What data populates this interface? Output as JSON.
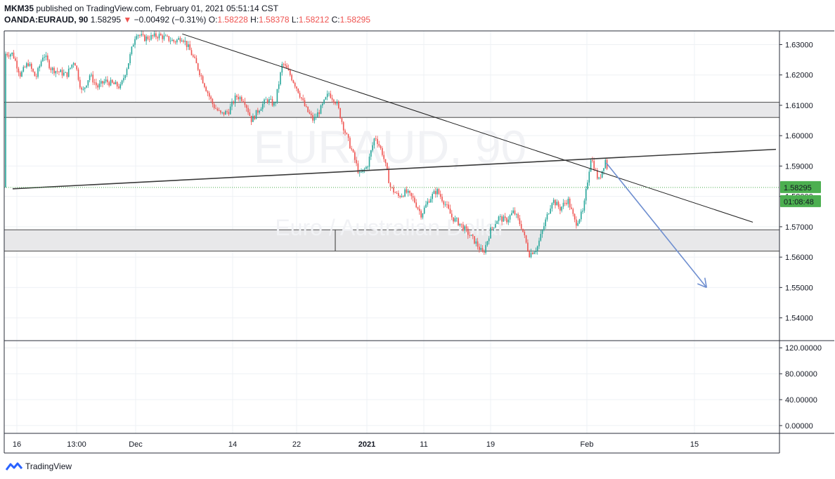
{
  "header": {
    "author": "MKM35",
    "published_text": "published on TradingView.com, February 01, 2021 05:51:14 CST",
    "symbol": "OANDA:EURAUD, 90",
    "last": "1.58295",
    "arrow": "▼",
    "change": "−0.00492 (−0.31%)",
    "o_label": "O:",
    "o": "1.58228",
    "h_label": "H:",
    "h": "1.58378",
    "l_label": "L:",
    "l": "1.58212",
    "c_label": "C:",
    "c": "1.58295"
  },
  "watermark": {
    "symbol": "EURAUD, 90",
    "description": "Euro / Australian Dollar"
  },
  "price_axis": {
    "ticks": [
      "1.63000",
      "1.62000",
      "1.61000",
      "1.60000",
      "1.59000",
      "1.58000",
      "1.57000",
      "1.56000",
      "1.55000",
      "1.54000"
    ],
    "tick_values": [
      1.63,
      1.62,
      1.61,
      1.6,
      1.59,
      1.58,
      1.57,
      1.56,
      1.55,
      1.54
    ],
    "last_price_label": "1.58295",
    "countdown_label": "01:08:48"
  },
  "osc_axis": {
    "ticks": [
      "120.00000",
      "80.00000",
      "40.00000",
      "0.00000"
    ],
    "tick_values": [
      120,
      80,
      40,
      0
    ]
  },
  "time_axis": {
    "labels": [
      "16",
      "13:00",
      "Dec",
      "14",
      "22",
      "2021",
      "11",
      "19",
      "Feb",
      "15"
    ],
    "bold": [
      false,
      false,
      false,
      false,
      false,
      true,
      false,
      false,
      false,
      false
    ]
  },
  "footer": {
    "brand": "TradingView"
  },
  "colors": {
    "up": "#26a69a",
    "down": "#ef5350",
    "blue_arrow": "#6f8fd0",
    "last_price_bg": "#4caf50",
    "zone_fill": "#e8e8ea",
    "grid": "#eef0f4"
  },
  "chart_data": {
    "type": "candlestick",
    "symbol": "OANDA:EURAUD",
    "interval": "90",
    "x_range": [
      "2020-11-16",
      "2021-02-23"
    ],
    "ylim": [
      1.5325,
      1.6345
    ],
    "path": [
      [
        "2020-11-16",
        1.627
      ],
      [
        "2020-11-17",
        1.62
      ],
      [
        "2020-11-18",
        1.624
      ],
      [
        "2020-11-19",
        1.619
      ],
      [
        "2020-11-20",
        1.627
      ],
      [
        "2020-11-21",
        1.622
      ],
      [
        "2020-11-23",
        1.62
      ],
      [
        "2020-11-24",
        1.625
      ],
      [
        "2020-11-25",
        1.614
      ],
      [
        "2020-11-26",
        1.62
      ],
      [
        "2020-11-27",
        1.616
      ],
      [
        "2020-11-28",
        1.618
      ],
      [
        "2020-11-30",
        1.616
      ],
      [
        "2020-12-01",
        1.624
      ],
      [
        "2020-12-02",
        1.634
      ],
      [
        "2020-12-03",
        1.632
      ],
      [
        "2020-12-05",
        1.633
      ],
      [
        "2020-12-07",
        1.631
      ],
      [
        "2020-12-08",
        1.6325
      ],
      [
        "2020-12-09",
        1.628
      ],
      [
        "2020-12-10",
        1.6225
      ],
      [
        "2020-12-11",
        1.616
      ],
      [
        "2020-12-12",
        1.61
      ],
      [
        "2020-12-13",
        1.607
      ],
      [
        "2020-12-14",
        1.608
      ],
      [
        "2020-12-15",
        1.613
      ],
      [
        "2020-12-16",
        1.612
      ],
      [
        "2020-12-17",
        1.605
      ],
      [
        "2020-12-18",
        1.609
      ],
      [
        "2020-12-19",
        1.612
      ],
      [
        "2020-12-20",
        1.61
      ],
      [
        "2020-12-21",
        1.624
      ],
      [
        "2020-12-22",
        1.62
      ],
      [
        "2020-12-23",
        1.615
      ],
      [
        "2020-12-24",
        1.609
      ],
      [
        "2020-12-25",
        1.605
      ],
      [
        "2020-12-26",
        1.609
      ],
      [
        "2020-12-27",
        1.614
      ],
      [
        "2020-12-28",
        1.611
      ],
      [
        "2020-12-29",
        1.602
      ],
      [
        "2020-12-30",
        1.595
      ],
      [
        "2020-12-31",
        1.587
      ],
      [
        "2021-01-01",
        1.59
      ],
      [
        "2021-01-02",
        1.6
      ],
      [
        "2021-01-03",
        1.594
      ],
      [
        "2021-01-04",
        1.583
      ],
      [
        "2021-01-05",
        1.58
      ],
      [
        "2021-01-06",
        1.5815
      ],
      [
        "2021-01-07",
        1.579
      ],
      [
        "2021-01-08",
        1.574
      ],
      [
        "2021-01-09",
        1.579
      ],
      [
        "2021-01-10",
        1.582
      ],
      [
        "2021-01-11",
        1.578
      ],
      [
        "2021-01-12",
        1.573
      ],
      [
        "2021-01-13",
        1.571
      ],
      [
        "2021-01-14",
        1.568
      ],
      [
        "2021-01-15",
        1.565
      ],
      [
        "2021-01-16",
        1.561
      ],
      [
        "2021-01-17",
        1.569
      ],
      [
        "2021-01-18",
        1.573
      ],
      [
        "2021-01-19",
        1.572
      ],
      [
        "2021-01-20",
        1.575
      ],
      [
        "2021-01-21",
        1.57
      ],
      [
        "2021-01-22",
        1.561
      ],
      [
        "2021-01-23",
        1.563
      ],
      [
        "2021-01-24",
        1.571
      ],
      [
        "2021-01-25",
        1.579
      ],
      [
        "2021-01-26",
        1.576
      ],
      [
        "2021-01-27",
        1.579
      ],
      [
        "2021-01-28",
        1.571
      ],
      [
        "2021-01-29",
        1.575
      ],
      [
        "2021-01-30",
        1.593
      ],
      [
        "2021-01-31",
        1.585
      ],
      [
        "2021-02-01",
        1.593
      ],
      [
        "2021-02-01T06:00",
        1.583
      ]
    ],
    "support_zones": [
      {
        "from": 1.606,
        "to": 1.611
      },
      {
        "from": 1.562,
        "to": 1.569
      }
    ],
    "trendlines": [
      {
        "from": [
          "2020-12-08",
          1.6335
        ],
        "to": [
          "2021-02-20",
          1.5715
        ]
      },
      {
        "from": [
          "2020-11-16",
          1.5825
        ],
        "to": [
          "2021-02-23",
          1.5955
        ]
      }
    ],
    "projection_arrow": {
      "from": [
        "2021-02-01",
        1.591
      ],
      "to": [
        "2021-02-14",
        1.55
      ]
    },
    "oscillator": {
      "ylim": [
        -12,
        130
      ]
    },
    "last_price": 1.58295
  }
}
